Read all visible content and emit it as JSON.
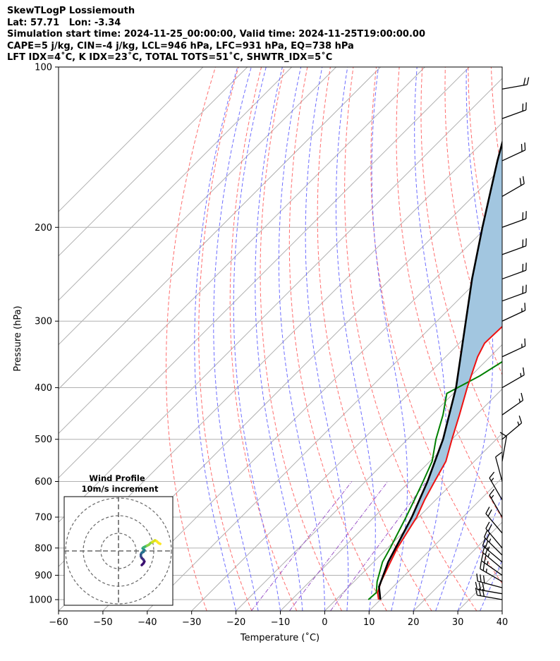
{
  "header": {
    "line1": "SkewTLogP Lossiemouth",
    "line2": "Lat: 57.71   Lon: -3.34",
    "line3": "Simulation start time: 2024-11-25_00:00:00, Valid time: 2024-11-25T19:00:00.00",
    "line4": "CAPE=5 j/kg, CIN=-4 j/kg, LCL=946 hPa, LFC=931 hPa, EQ=738 hPa",
    "line5": "LFT IDX=4˚C, K IDX=23˚C, TOTAL TOTS=51˚C, SHWTR_IDX=5˚C"
  },
  "chart_data": {
    "type": "line",
    "subtype": "skew-T log-P",
    "xlabel": "Temperature (˚C)",
    "ylabel": "Pressure (hPa)",
    "xlim": [
      -60,
      40
    ],
    "ylim": [
      1050,
      100
    ],
    "x_ticks": [
      "−60",
      "−50",
      "−40",
      "−30",
      "−20",
      "−10",
      "0",
      "10",
      "20",
      "30",
      "40"
    ],
    "x_tick_values": [
      -60,
      -50,
      -40,
      -30,
      -20,
      -10,
      0,
      10,
      20,
      30,
      40
    ],
    "y_ticks": [
      "100",
      "200",
      "300",
      "400",
      "500",
      "600",
      "700",
      "800",
      "900",
      "1000"
    ],
    "y_tick_values": [
      100,
      200,
      300,
      400,
      500,
      600,
      700,
      800,
      900,
      1000
    ],
    "y_scale": "log",
    "grid": true,
    "series": [
      {
        "role": "temperature",
        "color": "#ee1111",
        "points": [
          [
            1000,
            9.6
          ],
          [
            970,
            7.8
          ],
          [
            925,
            6.1
          ],
          [
            850,
            3.8
          ],
          [
            800,
            2.2
          ],
          [
            700,
            -0.4
          ],
          [
            650,
            -2.5
          ],
          [
            600,
            -4.4
          ],
          [
            550,
            -6.4
          ],
          [
            500,
            -10.0
          ],
          [
            450,
            -13.8
          ],
          [
            400,
            -18.2
          ],
          [
            350,
            -22.8
          ],
          [
            330,
            -24.3
          ],
          [
            300,
            -24.0
          ],
          [
            280,
            -21.7
          ],
          [
            260,
            -14.5
          ],
          [
            240,
            -6.6
          ],
          [
            220,
            1.0
          ],
          [
            200,
            8.0
          ],
          [
            180,
            13.0
          ],
          [
            160,
            16.0
          ],
          [
            140,
            19.4
          ],
          [
            120,
            24.3
          ],
          [
            100,
            30.5
          ]
        ]
      },
      {
        "role": "dewpoint",
        "color": "#008000",
        "points": [
          [
            1000,
            7.3
          ],
          [
            970,
            7.5
          ],
          [
            925,
            5.2
          ],
          [
            850,
            2.0
          ],
          [
            800,
            0.6
          ],
          [
            700,
            -2.8
          ],
          [
            650,
            -4.8
          ],
          [
            600,
            -7.0
          ],
          [
            550,
            -9.5
          ],
          [
            500,
            -13.6
          ],
          [
            450,
            -17.5
          ],
          [
            410,
            -21.5
          ],
          [
            380,
            -18.0
          ],
          [
            350,
            -15.5
          ],
          [
            320,
            -14.0
          ],
          [
            300,
            -14.3
          ],
          [
            280,
            -17.0
          ],
          [
            265,
            -20.2
          ],
          [
            240,
            -20.9
          ],
          [
            220,
            -21.3
          ],
          [
            205,
            -23.0
          ],
          [
            190,
            -26.0
          ],
          [
            160,
            -22.8
          ],
          [
            120,
            -16.0
          ],
          [
            100,
            -11.0
          ]
        ]
      },
      {
        "role": "parcel",
        "color": "#000000",
        "points": [
          [
            1000,
            10.0
          ],
          [
            946,
            6.8
          ],
          [
            850,
            3.3
          ],
          [
            700,
            -1.5
          ],
          [
            600,
            -6.0
          ],
          [
            500,
            -12.0
          ],
          [
            400,
            -20.7
          ],
          [
            300,
            -33.5
          ],
          [
            250,
            -41.6
          ],
          [
            200,
            -50.9
          ],
          [
            150,
            -62.5
          ],
          [
            100,
            -78.0
          ]
        ]
      }
    ],
    "shaded_region": {
      "between": [
        "parcel",
        "temperature"
      ],
      "color": "#a2c6e0",
      "meaning": "CAPE"
    },
    "background_lines": {
      "isotherms": {
        "color": "#aaaaaa",
        "step_c": 10
      },
      "dry_adiabats": {
        "color": "#ff6e6e",
        "style": "dashed"
      },
      "moist_adiabats": {
        "color": "#6e6eff",
        "style": "dashed"
      },
      "mixing_ratio": {
        "color": "#9b56c8",
        "style": "dash-dot"
      }
    },
    "wind_barbs": [
      {
        "p": 1000,
        "speed_kt": 30,
        "dir_deg": 100
      },
      {
        "p": 975,
        "speed_kt": 30,
        "dir_deg": 100
      },
      {
        "p": 950,
        "speed_kt": 30,
        "dir_deg": 105
      },
      {
        "p": 925,
        "speed_kt": 25,
        "dir_deg": 120
      },
      {
        "p": 900,
        "speed_kt": 25,
        "dir_deg": 125
      },
      {
        "p": 875,
        "speed_kt": 25,
        "dir_deg": 130
      },
      {
        "p": 850,
        "speed_kt": 25,
        "dir_deg": 130
      },
      {
        "p": 825,
        "speed_kt": 25,
        "dir_deg": 135
      },
      {
        "p": 800,
        "speed_kt": 20,
        "dir_deg": 140
      },
      {
        "p": 750,
        "speed_kt": 20,
        "dir_deg": 140
      },
      {
        "p": 700,
        "speed_kt": 15,
        "dir_deg": 150
      },
      {
        "p": 650,
        "speed_kt": 15,
        "dir_deg": 150
      },
      {
        "p": 600,
        "speed_kt": 10,
        "dir_deg": 165
      },
      {
        "p": 550,
        "speed_kt": 10,
        "dir_deg": 190
      },
      {
        "p": 500,
        "speed_kt": 15,
        "dir_deg": 230
      },
      {
        "p": 450,
        "speed_kt": 15,
        "dir_deg": 235
      },
      {
        "p": 400,
        "speed_kt": 15,
        "dir_deg": 240
      },
      {
        "p": 350,
        "speed_kt": 15,
        "dir_deg": 245
      },
      {
        "p": 300,
        "speed_kt": 15,
        "dir_deg": 245
      },
      {
        "p": 275,
        "speed_kt": 20,
        "dir_deg": 250
      },
      {
        "p": 250,
        "speed_kt": 20,
        "dir_deg": 250
      },
      {
        "p": 225,
        "speed_kt": 20,
        "dir_deg": 250
      },
      {
        "p": 200,
        "speed_kt": 20,
        "dir_deg": 250
      },
      {
        "p": 175,
        "speed_kt": 20,
        "dir_deg": 240
      },
      {
        "p": 150,
        "speed_kt": 20,
        "dir_deg": 245
      },
      {
        "p": 125,
        "speed_kt": 20,
        "dir_deg": 250
      },
      {
        "p": 110,
        "speed_kt": 20,
        "dir_deg": 260
      }
    ],
    "hodograph": {
      "title_line1": "Wind Profile",
      "title_line2": "10m/s increment",
      "rings_ms": [
        10,
        20,
        30
      ],
      "points_uv": [
        [
          -2,
          -8
        ],
        [
          -1,
          -7
        ],
        [
          -0.5,
          -6
        ],
        [
          -1,
          -5
        ],
        [
          -2,
          -4
        ],
        [
          -2.5,
          -3
        ],
        [
          -2.5,
          -2
        ],
        [
          -2,
          -1
        ],
        [
          -1,
          -0.5
        ],
        [
          -0.5,
          0.5
        ],
        [
          -1,
          1
        ],
        [
          -1.5,
          1.5
        ],
        [
          -1,
          2
        ],
        [
          0,
          2.5
        ],
        [
          1,
          3
        ],
        [
          2,
          3.5
        ],
        [
          3,
          4.5
        ],
        [
          4,
          5
        ],
        [
          5.5,
          6
        ],
        [
          6.5,
          5.5
        ],
        [
          7.5,
          4.5
        ],
        [
          8.5,
          4
        ]
      ]
    }
  }
}
